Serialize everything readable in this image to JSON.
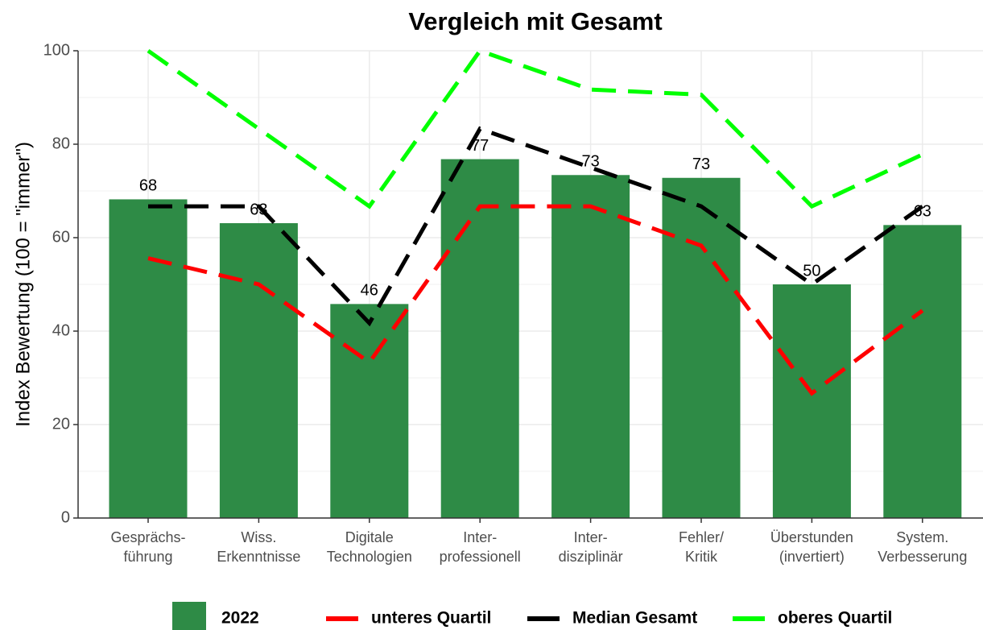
{
  "chart_data": {
    "type": "bar",
    "title": "Vergleich mit Gesamt",
    "ylabel": "Index Bewertung (100 = \"immer\")",
    "categories": [
      [
        "Gesprächs-",
        "führung"
      ],
      [
        "Wiss.",
        "Erkenntnisse"
      ],
      [
        "Digitale",
        "Technologien"
      ],
      [
        "Inter-",
        "professionell"
      ],
      [
        "Inter-",
        "disziplinär"
      ],
      [
        "Fehler/",
        "Kritik"
      ],
      [
        "Überstunden",
        "(invertiert)"
      ],
      [
        "System.",
        "Verbesserung"
      ]
    ],
    "bars": {
      "name": "2022",
      "color": "#2e8b46",
      "values": [
        68.2,
        63.1,
        45.8,
        76.8,
        73.4,
        72.8,
        50,
        62.7
      ],
      "value_labels": [
        "68",
        "63",
        "46",
        "77",
        "73",
        "73",
        "50",
        "63"
      ]
    },
    "series": [
      {
        "name": "unteres Quartil",
        "color": "#ff0000",
        "values": [
          55.6,
          50,
          33.3,
          66.7,
          66.7,
          58.3,
          26.7,
          44.4
        ]
      },
      {
        "name": "Median Gesamt",
        "color": "#000000",
        "values": [
          66.7,
          66.7,
          41.7,
          83.3,
          75,
          66.7,
          50,
          66.7
        ]
      },
      {
        "name": "oberes Quartil",
        "color": "#00ff00",
        "values": [
          100,
          83.3,
          66.7,
          100,
          91.7,
          90.6,
          66.7,
          77.8
        ]
      }
    ],
    "ylim": [
      0,
      100
    ],
    "yticks": [
      0,
      20,
      40,
      60,
      80,
      100
    ],
    "grid": true,
    "legend": "bottom"
  }
}
